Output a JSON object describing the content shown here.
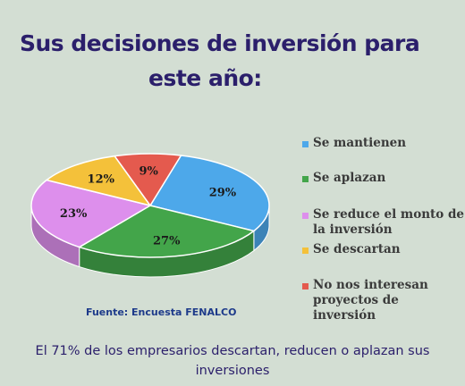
{
  "title": {
    "line1": "Sus decisiones de inversión para",
    "line2": "este año:"
  },
  "chart_data": {
    "type": "pie",
    "title": "Sus decisiones de inversión para este año:",
    "categories": [
      "Se mantienen",
      "Se aplazan",
      "Se reduce el monto de la inversión",
      "Se descartan",
      "No nos interesan proyectos de inversión"
    ],
    "values": [
      29,
      27,
      23,
      12,
      9
    ],
    "data_labels": [
      "29%",
      "27%",
      "23%",
      "12%",
      "9%"
    ],
    "colors": [
      "#4da8ea",
      "#43a54a",
      "#dd8fec",
      "#f4c13a",
      "#e45a4e"
    ],
    "legend_position": "right"
  },
  "legend": {
    "items": [
      {
        "label": "Se mantienen",
        "color": "#4da8ea"
      },
      {
        "label": "Se aplazan",
        "color": "#43a54a"
      },
      {
        "label": "Se reduce el monto de\nla inversión",
        "color": "#dd8fec"
      },
      {
        "label": "Se descartan",
        "color": "#f4c13a"
      },
      {
        "label": "No nos interesan\nproyectos de inversión",
        "color": "#e45a4e"
      }
    ]
  },
  "source": "Fuente: Encuesta FENALCO",
  "footer": "El 71% de los empresarios descartan, reducen o aplazan sus\ninversiones"
}
